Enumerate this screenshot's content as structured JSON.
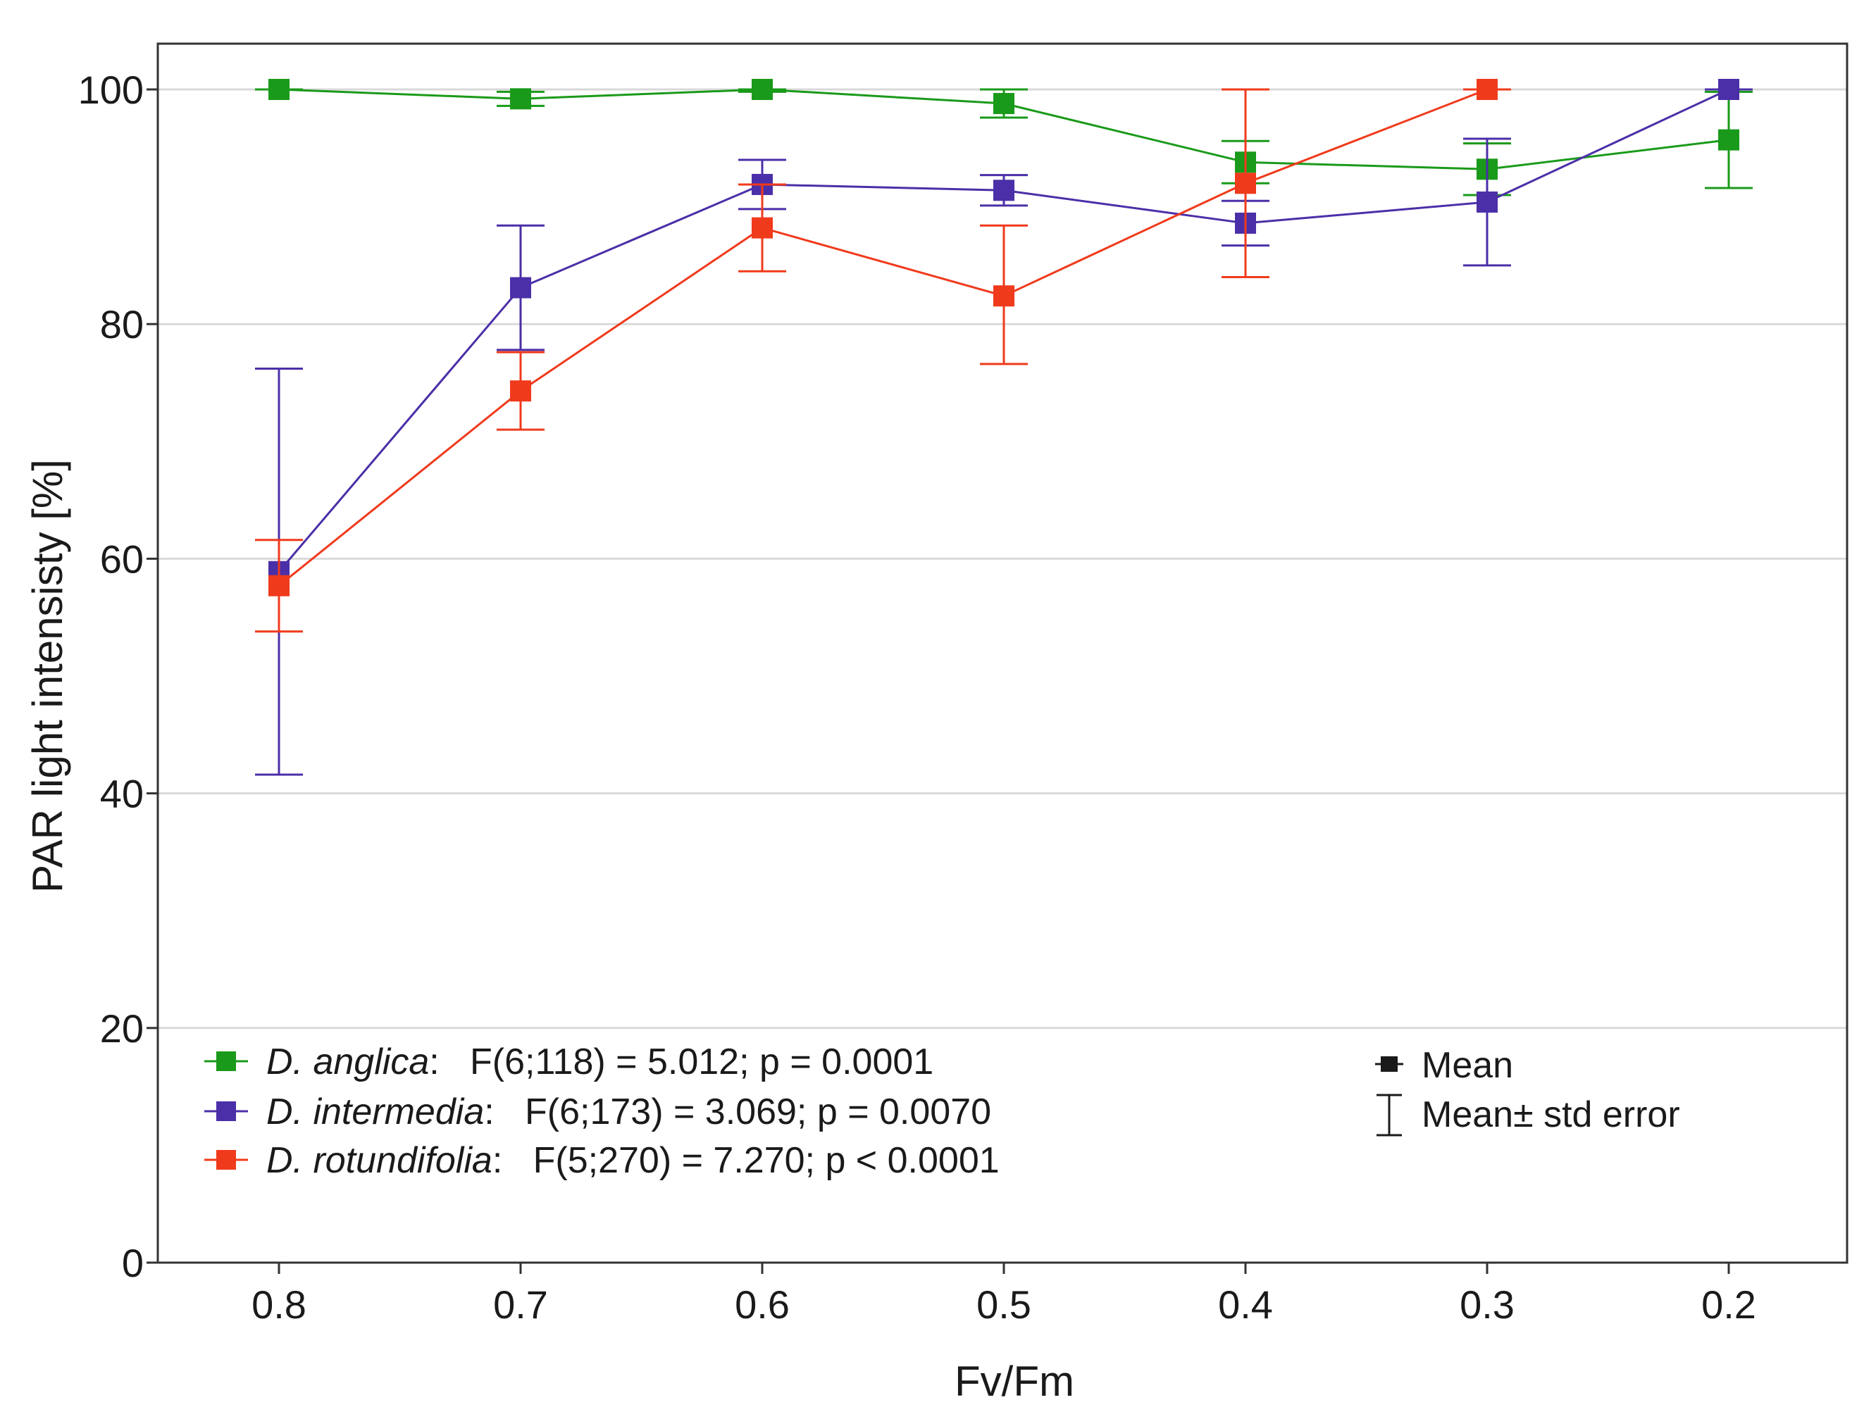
{
  "chart_data": {
    "type": "line",
    "xlabel": "Fv/Fm",
    "ylabel": "PAR light intensisty [%]",
    "categories": [
      "0.8",
      "0.7",
      "0.6",
      "0.5",
      "0.4",
      "0.3",
      "0.2"
    ],
    "ylim": [
      0,
      104
    ],
    "yticks": [
      0,
      20,
      40,
      60,
      80,
      100
    ],
    "grid": "horizontal",
    "legend_placement": "bottom-left",
    "series": [
      {
        "name": "D. anglica",
        "stats": ":   F(6;118) = 5.012; p = 0.0001",
        "color": "#1a9a1a",
        "values": [
          100,
          99.2,
          100,
          98.8,
          93.8,
          93.2,
          95.7
        ],
        "err_low": [
          100,
          98.6,
          99.8,
          97.6,
          92.0,
          91.0,
          91.6
        ],
        "err_high": [
          100,
          99.8,
          100,
          100,
          95.6,
          95.4,
          99.8
        ]
      },
      {
        "name": "D. intermedia",
        "stats": ":   F(6;173) = 3.069; p = 0.0070",
        "color": "#4b2fa8",
        "values": [
          58.9,
          83.1,
          91.9,
          91.4,
          88.6,
          90.4,
          100
        ],
        "err_low": [
          41.6,
          77.8,
          89.8,
          90.1,
          86.7,
          85.0,
          100
        ],
        "err_high": [
          76.2,
          88.4,
          94.0,
          92.7,
          90.5,
          95.8,
          100
        ]
      },
      {
        "name": "D. rotundifolia",
        "stats": ":   F(5;270) = 7.270; p < 0.0001",
        "color": "#f03a1c",
        "values": [
          57.7,
          74.3,
          88.2,
          82.4,
          92.0,
          100,
          null
        ],
        "err_low": [
          53.8,
          71.0,
          84.5,
          76.6,
          84.0,
          100,
          null
        ],
        "err_high": [
          61.6,
          77.6,
          91.9,
          88.4,
          100,
          100,
          null
        ]
      }
    ],
    "key_legend": [
      {
        "symbol": "mean",
        "label": "Mean"
      },
      {
        "symbol": "errorbar",
        "label": "Mean± std error"
      }
    ]
  }
}
